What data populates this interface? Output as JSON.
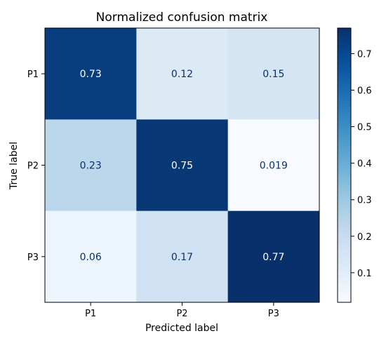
{
  "chart_data": {
    "type": "heatmap",
    "title": "Normalized confusion matrix",
    "xlabel": "Predicted label",
    "ylabel": "True label",
    "x_categories": [
      "P1",
      "P2",
      "P3"
    ],
    "y_categories": [
      "P1",
      "P2",
      "P3"
    ],
    "values": [
      [
        0.73,
        0.12,
        0.15
      ],
      [
        0.23,
        0.75,
        0.019
      ],
      [
        0.06,
        0.17,
        0.77
      ]
    ],
    "value_labels": [
      [
        "0.73",
        "0.12",
        "0.15"
      ],
      [
        "0.23",
        "0.75",
        "0.019"
      ],
      [
        "0.06",
        "0.17",
        "0.77"
      ]
    ],
    "colormap": "Blues",
    "colorbar": {
      "range": [
        0.019,
        0.77
      ],
      "ticks": [
        0.1,
        0.2,
        0.3,
        0.4,
        0.5,
        0.6,
        0.7
      ],
      "tick_labels": [
        "0.1",
        "0.2",
        "0.3",
        "0.4",
        "0.5",
        "0.6",
        "0.7"
      ]
    },
    "text_colors": {
      "dark_cell": "#ffffff",
      "light_cell": "#08306b"
    }
  }
}
